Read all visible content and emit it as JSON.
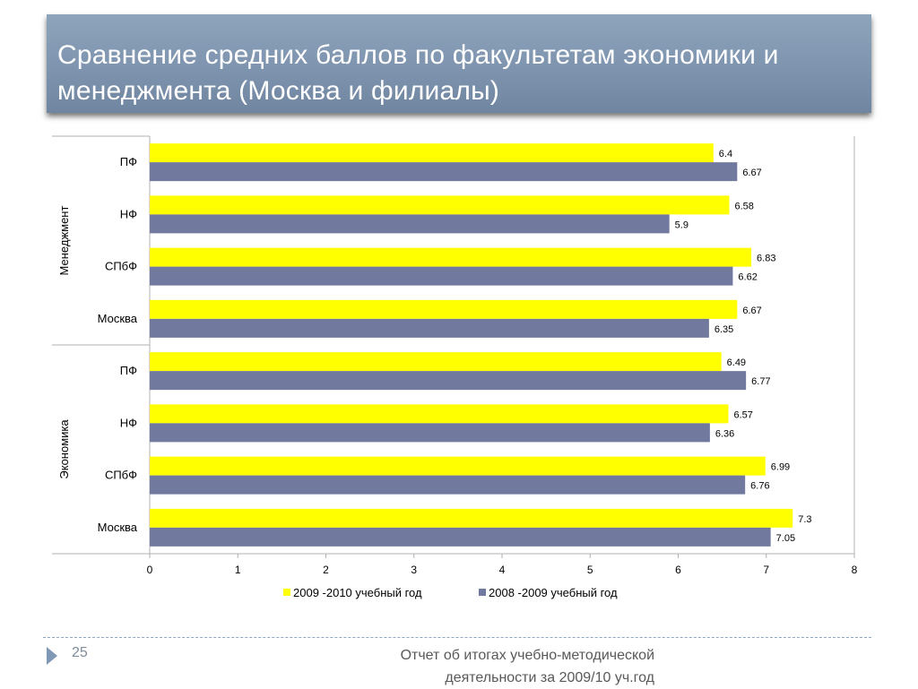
{
  "slide": {
    "title": "Сравнение средних баллов по факультетам экономики и менеджмента (Москва и филиалы)",
    "page_number": "25",
    "footer": "Отчет об итогах учебно-методической деятельности за 2009/10 уч.год",
    "accent_color": "#8097b1"
  },
  "chart_data": {
    "type": "bar",
    "orientation": "horizontal",
    "title": "",
    "xlabel": "",
    "ylabel": "",
    "xlim": [
      0,
      8
    ],
    "x_ticks": [
      "0",
      "1",
      "2",
      "3",
      "4",
      "5",
      "6",
      "7",
      "8"
    ],
    "grid": false,
    "legend_position": "bottom",
    "group_labels": [
      "Менеджмент",
      "Экономика"
    ],
    "categories": [
      "ПФ",
      "НФ",
      "СПбФ",
      "Москва",
      "ПФ",
      "НФ",
      "СПбФ",
      "Москва"
    ],
    "category_groups": [
      0,
      0,
      0,
      0,
      1,
      1,
      1,
      1
    ],
    "series": [
      {
        "name": "2009 -2010 учебный год",
        "color": "#ffff00",
        "values": [
          6.4,
          6.58,
          6.83,
          6.67,
          6.49,
          6.57,
          6.99,
          7.3
        ],
        "labels": [
          "6.4",
          "6.58",
          "6.83",
          "6.67",
          "6.49",
          "6.57",
          "6.99",
          "7.3"
        ]
      },
      {
        "name": "2008 -2009 учебный год",
        "color": "#72799f",
        "values": [
          6.67,
          5.9,
          6.62,
          6.35,
          6.77,
          6.36,
          6.76,
          7.05
        ],
        "labels": [
          "6.67",
          "5.9",
          "6.62",
          "6.35",
          "6.77",
          "6.36",
          "6.76",
          "7.05"
        ]
      }
    ]
  }
}
